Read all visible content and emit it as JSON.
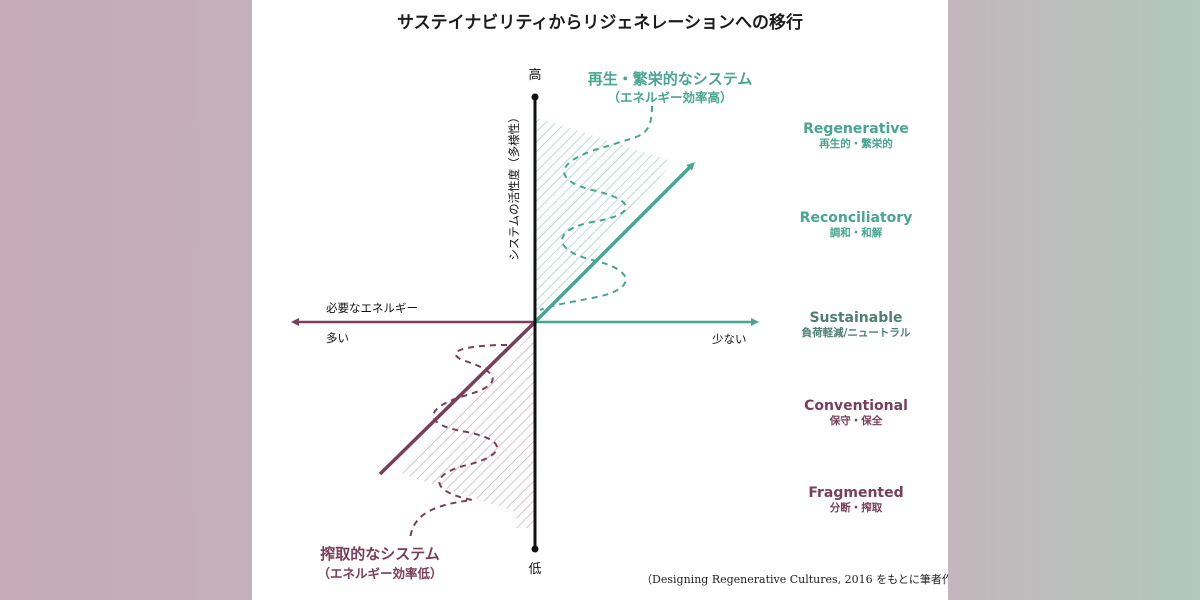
{
  "title": "サステイナビリティからリジェネレーションへの移行",
  "y_axis": {
    "label": "システムの活性度（多様性）",
    "high": "高",
    "low": "低"
  },
  "x_axis": {
    "label": "必要なエネルギー",
    "many": "多い",
    "few": "少ない"
  },
  "top_system": {
    "title": "再生・繁栄的なシステム",
    "subtitle": "（エネルギー効率高）",
    "color": "#47a690"
  },
  "bottom_system": {
    "title": "搾取的なシステム",
    "subtitle": "（エネルギー効率低）",
    "color": "#7a3d5a"
  },
  "levels": [
    {
      "name": "Regenerative",
      "sub": "再生的・繁栄的",
      "color": "#47a690"
    },
    {
      "name": "Reconciliatory",
      "sub": "調和・和解",
      "color": "#47a690"
    },
    {
      "name": "Sustainable",
      "sub": "負荷軽減/ニュートラル",
      "color": "#4f7f73"
    },
    {
      "name": "Conventional",
      "sub": "保守・保全",
      "color": "#7a3d5a"
    },
    {
      "name": "Fragmented",
      "sub": "分断・搾取",
      "color": "#7a3d5a"
    }
  ],
  "credit": "（Designing Regenerative Cultures, 2016 をもとに筆者作成）"
}
